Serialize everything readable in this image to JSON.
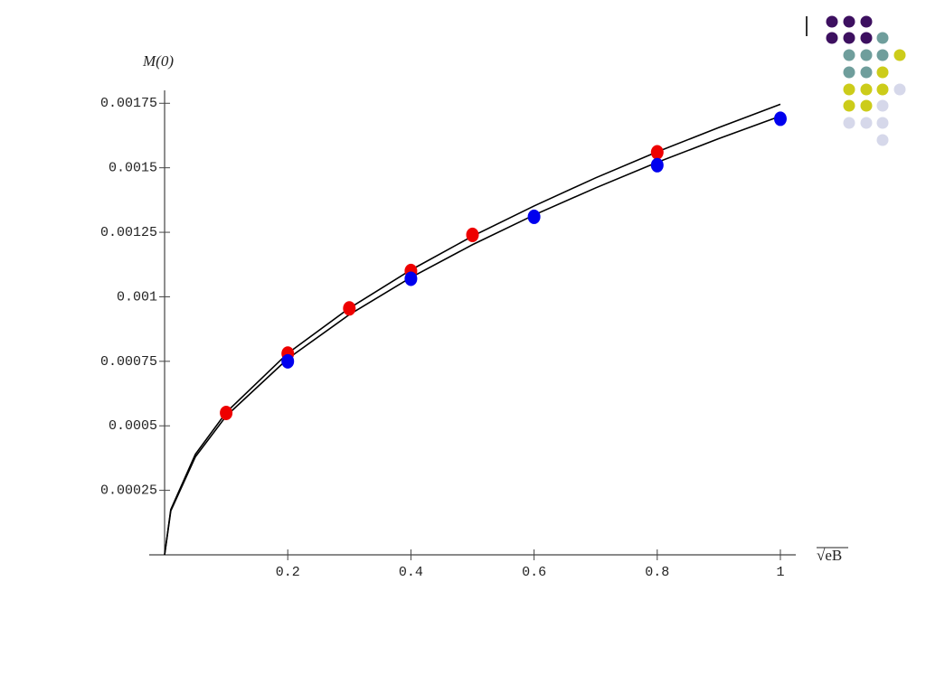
{
  "chart_data": {
    "type": "scatter",
    "y_label": "M(0)",
    "x_label": "√eB",
    "xlim": [
      -0.025,
      1.025
    ],
    "ylim": [
      0,
      0.0018
    ],
    "xticks": [
      0.2,
      0.4,
      0.6,
      0.8,
      1
    ],
    "yticks": [
      0.00025,
      0.0005,
      0.00075,
      0.001,
      0.00125,
      0.0015,
      0.00175
    ],
    "series": [
      {
        "type": "line",
        "color": "#000000",
        "x": [
          0,
          0.01,
          0.05,
          0.1,
          0.2,
          0.3,
          0.4,
          0.5,
          0.6,
          0.7,
          0.8,
          0.9,
          1
        ],
        "values": [
          0,
          0.000175,
          0.00039,
          0.000552,
          0.000781,
          0.000956,
          0.001104,
          0.001235,
          0.001352,
          0.001461,
          0.001562,
          0.001656,
          0.001746
        ]
      },
      {
        "type": "line",
        "color": "#000000",
        "x": [
          0,
          0.01,
          0.05,
          0.1,
          0.2,
          0.3,
          0.4,
          0.5,
          0.6,
          0.7,
          0.8,
          0.9,
          1
        ],
        "values": [
          0,
          0.00017,
          0.00038,
          0.000538,
          0.00076,
          0.000931,
          0.001075,
          0.001202,
          0.001317,
          0.001422,
          0.001521,
          0.001613,
          0.0017
        ]
      },
      {
        "type": "scatter",
        "color": "#ee0000",
        "x": [
          0.1,
          0.2,
          0.3,
          0.4,
          0.5,
          0.8
        ],
        "values": [
          0.00055,
          0.00078,
          0.000955,
          0.0011,
          0.00124,
          0.00156
        ]
      },
      {
        "type": "scatter",
        "color": "#0000ee",
        "x": [
          0.2,
          0.4,
          0.6,
          0.8,
          1
        ],
        "values": [
          0.00075,
          0.00107,
          0.00131,
          0.00151,
          0.00169
        ]
      }
    ]
  }
}
